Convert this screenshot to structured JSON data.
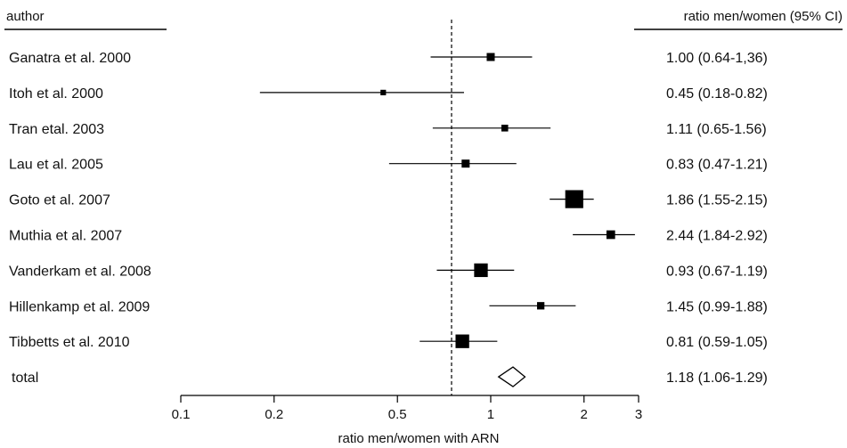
{
  "chart_data": {
    "type": "forest",
    "columns": {
      "left_header": "author",
      "right_header": "ratio men/women (95% CI)"
    },
    "xlabel": "ratio men/women with ARN",
    "xscale": "log",
    "xlim": [
      0.1,
      3
    ],
    "ticks": [
      {
        "value": 0.1,
        "label": "0.1"
      },
      {
        "value": 0.2,
        "label": "0.2"
      },
      {
        "value": 0.5,
        "label": "0.5"
      },
      {
        "value": 1,
        "label": "1"
      },
      {
        "value": 2,
        "label": "2"
      },
      {
        "value": 3,
        "label": "3"
      }
    ],
    "reference_line": 1,
    "studies": [
      {
        "author": "Ganatra et al. 2000",
        "est": 1.0,
        "lo": 0.64,
        "hi": 1.36,
        "weight": 1.0,
        "ci_text": "1.00 (0.64-1,36)"
      },
      {
        "author": "Itoh et al. 2000",
        "est": 0.45,
        "lo": 0.18,
        "hi": 0.82,
        "weight": 0.6,
        "ci_text": "0.45 (0.18-0.82)"
      },
      {
        "author": "Tran etal. 2003",
        "est": 1.11,
        "lo": 0.65,
        "hi": 1.56,
        "weight": 0.8,
        "ci_text": "1.11 (0.65-1.56)"
      },
      {
        "author": "Lau et al. 2005",
        "est": 0.83,
        "lo": 0.47,
        "hi": 1.21,
        "weight": 1.0,
        "ci_text": "0.83 (0.47-1.21)"
      },
      {
        "author": "Goto et al. 2007",
        "est": 1.86,
        "lo": 1.55,
        "hi": 2.15,
        "weight": 2.6,
        "ci_text": "1.86 (1.55-2.15)"
      },
      {
        "author": "Muthia et al. 2007",
        "est": 2.44,
        "lo": 1.84,
        "hi": 2.92,
        "weight": 1.1,
        "ci_text": "2.44 (1.84-2.92)"
      },
      {
        "author": "Vanderkam et al. 2008",
        "est": 0.93,
        "lo": 0.67,
        "hi": 1.19,
        "weight": 1.9,
        "ci_text": "0.93 (0.67-1.19)"
      },
      {
        "author": "Hillenkamp et al. 2009",
        "est": 1.45,
        "lo": 0.99,
        "hi": 1.88,
        "weight": 0.9,
        "ci_text": "1.45 (0.99-1.88)"
      },
      {
        "author": "Tibbetts et al. 2010",
        "est": 0.81,
        "lo": 0.59,
        "hi": 1.05,
        "weight": 1.9,
        "ci_text": "0.81 (0.59-1.05)"
      }
    ],
    "total": {
      "author": "total",
      "est": 1.18,
      "lo": 1.06,
      "hi": 1.29,
      "ci_text": "1.18 (1.06-1.29)"
    },
    "grid": false,
    "legend": "none",
    "colors": {
      "ink": "#000000",
      "diamond_fill": "#ffffff"
    }
  }
}
